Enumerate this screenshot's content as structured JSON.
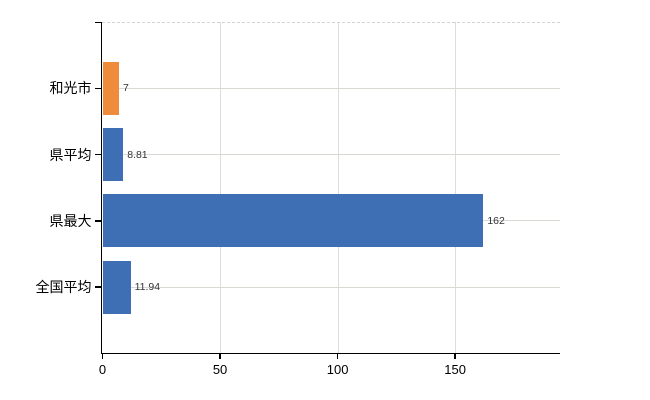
{
  "page": {
    "background_color": "#ffffff"
  },
  "chart_data": {
    "type": "bar",
    "orientation": "horizontal",
    "title": "",
    "xlabel": "",
    "ylabel": "",
    "categories": [
      "和光市",
      "県平均",
      "県最大",
      "全国平均"
    ],
    "values": [
      7,
      8.81,
      162,
      11.94
    ],
    "value_labels": [
      "7",
      "8.81",
      "162",
      "11.94"
    ],
    "bar_colors": [
      "#EF8C3B",
      "#3E6FB4",
      "#3E6FB4",
      "#3E6FB4"
    ],
    "xlim": [
      0,
      194.6
    ],
    "xticks": [
      0,
      50,
      100,
      150
    ],
    "xtick_labels": [
      "0",
      "50",
      "100",
      "150"
    ],
    "grid": true,
    "legend": false,
    "colors": {
      "axis": "#000000",
      "gridline": "#d9d9d4",
      "dashed_top_line": "#d4d4cf",
      "category_text": "#000000",
      "value_text": "#333333",
      "tick_text": "#000000",
      "background": "#ffffff"
    }
  }
}
